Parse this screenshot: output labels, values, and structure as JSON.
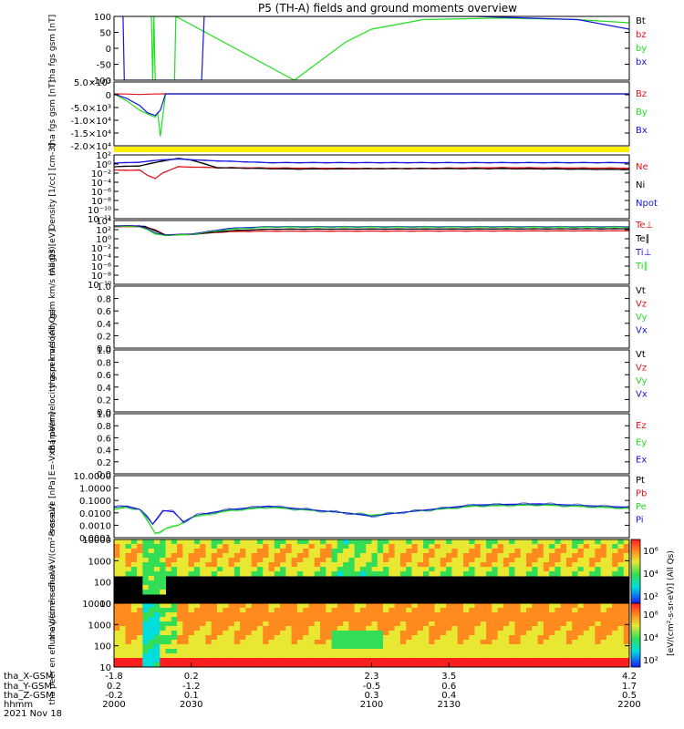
{
  "title": "P5 (TH-A) fields and ground moments overview",
  "colors": {
    "black": "#000000",
    "red": "#e0141e",
    "green": "#22dd22",
    "blue": "#1515e0",
    "yellow": "#ffee00",
    "axis": "#000000"
  },
  "chart_data": [
    {
      "type": "line",
      "panel": "fgs-gsm",
      "ylabel": "tha fgs gsm [nT]",
      "yticks": [
        "100",
        "50",
        "0",
        "-50",
        "-100"
      ],
      "ylim": [
        -100,
        100
      ],
      "series": [
        {
          "name": "Bt",
          "color": "#000000",
          "x": [],
          "y": []
        },
        {
          "name": "bz",
          "color": "#e0141e",
          "x": [],
          "y": []
        },
        {
          "name": "by",
          "color": "#22dd22",
          "x": [
            2000,
            2014,
            2014.5,
            2015,
            2015.5,
            2016,
            2016.5,
            2023.5,
            2024,
            2070,
            2080,
            2090,
            2100,
            2120,
            2150,
            2180,
            2200
          ],
          "y": [
            null,
            null,
            100,
            -100,
            100,
            -100,
            null,
            -100,
            100,
            -100,
            -40,
            20,
            60,
            90,
            95,
            90,
            80
          ]
        },
        {
          "name": "bx",
          "color": "#1515e0",
          "x": [
            2003.5,
            2004,
            2034,
            2035,
            2140,
            2180,
            2200
          ],
          "y": [
            100,
            -100,
            -100,
            100,
            100,
            90,
            60
          ]
        }
      ]
    },
    {
      "type": "line",
      "panel": "fgs-gsm-large",
      "ylabel": "tha fgs gsm [nT]",
      "yticks": [
        "5.0×10³",
        "0",
        "-5.0×10³",
        "-1.0×10⁴",
        "-1.5×10⁴",
        "-2.0×10⁴"
      ],
      "ylim": [
        -22000,
        5000
      ],
      "series": [
        {
          "name": "Bz",
          "color": "#e0141e",
          "x": [
            2000,
            2005,
            2010,
            2015,
            2020,
            2200
          ],
          "y": [
            0,
            -100,
            -300,
            -100,
            0,
            0
          ]
        },
        {
          "name": "By",
          "color": "#22dd22",
          "x": [
            2000,
            2005,
            2010,
            2015,
            2016,
            2017,
            2018,
            2020,
            2200
          ],
          "y": [
            0,
            -3000,
            -7000,
            -9500,
            -9800,
            -8000,
            -18000,
            0,
            0
          ]
        },
        {
          "name": "Bx",
          "color": "#1515e0",
          "x": [
            2000,
            2005,
            2010,
            2013,
            2016,
            2018,
            2020,
            2200
          ],
          "y": [
            0,
            -2000,
            -5000,
            -8000,
            -9200,
            -7000,
            0,
            0
          ]
        }
      ]
    },
    {
      "type": "line",
      "panel": "density",
      "ylabel": "Density [1/cc] [cm-3]",
      "yticks": [
        "10²",
        "10⁰",
        "10⁻²",
        "10⁻⁴",
        "10⁻⁶",
        "10⁻⁸",
        "10⁻¹⁰",
        "10⁻¹²"
      ],
      "yscale": "log",
      "ylim": [
        -12,
        2
      ],
      "series": [
        {
          "name": "Ne",
          "color": "#e0141e",
          "x": [
            2000,
            2005,
            2010,
            2013,
            2016,
            2019,
            2025,
            2040,
            2070,
            2110,
            2150,
            2200
          ],
          "y": [
            -1.3,
            -1.4,
            -1.3,
            -2.5,
            -3.2,
            -1.9,
            -0.6,
            -0.8,
            -0.9,
            -1.0,
            -0.8,
            -0.9
          ]
        },
        {
          "name": "Ni",
          "color": "#000000",
          "x": [
            2000,
            2010,
            2020,
            2025,
            2030,
            2040,
            2070,
            2110,
            2150,
            2200
          ],
          "y": [
            -0.6,
            -0.4,
            0.8,
            1.2,
            0.9,
            -0.8,
            -1.1,
            -1.0,
            -1.0,
            -1.2
          ]
        },
        {
          "name": "Npot",
          "color": "#1515e0",
          "x": [
            2000,
            2010,
            2018,
            2025,
            2035,
            2060,
            2200
          ],
          "y": [
            0.2,
            0.4,
            0.9,
            1.1,
            0.8,
            0.3,
            0.3
          ]
        }
      ]
    },
    {
      "type": "line",
      "panel": "temperature",
      "ylabel": "magt3 [eV]",
      "yticks": [
        "10⁴",
        "10²",
        "10⁰",
        "10⁻²",
        "10⁻⁴",
        "10⁻⁶",
        "10⁻⁸",
        "10⁻¹⁰"
      ],
      "yscale": "log",
      "ylim": [
        -11,
        4.5
      ],
      "series": [
        {
          "name": "Te⊥",
          "color": "#e0141e",
          "x": [
            2000,
            2012,
            2016,
            2020,
            2030,
            2045,
            2060,
            2200
          ],
          "y": [
            3.0,
            3.0,
            2.2,
            1.0,
            1.2,
            1.8,
            1.9,
            2.0
          ]
        },
        {
          "name": "Te∥",
          "color": "#000000",
          "x": [
            2000,
            2012,
            2016,
            2020,
            2030,
            2045,
            2060,
            2200
          ],
          "y": [
            3.2,
            3.1,
            2.0,
            1.0,
            1.1,
            2.0,
            2.4,
            2.5
          ]
        },
        {
          "name": "Ti⊥",
          "color": "#1515e0",
          "x": [
            2000,
            2010,
            2013,
            2016,
            2020,
            2030,
            2045,
            2060,
            2200
          ],
          "y": [
            3.2,
            3.2,
            2.5,
            1.4,
            1.0,
            1.2,
            2.6,
            3.0,
            3.0
          ]
        },
        {
          "name": "Ti∥",
          "color": "#22dd22",
          "x": [
            2000,
            2010,
            2013,
            2016,
            2020,
            2030,
            2045,
            2060,
            2200
          ],
          "y": [
            3.1,
            3.0,
            2.3,
            1.2,
            0.9,
            1.1,
            2.4,
            2.9,
            2.9
          ]
        }
      ]
    },
    {
      "type": "line",
      "panel": "peir-velocity",
      "ylabel": "tha peir velocity gsm km/s (All Qs)",
      "yticks": [
        "1.0",
        "0.8",
        "0.6",
        "0.4",
        "0.2",
        "0.0"
      ],
      "ylim": [
        0,
        1
      ],
      "series": [
        {
          "name": "Vt",
          "color": "#000000",
          "x": [],
          "y": []
        },
        {
          "name": "Vz",
          "color": "#e0141e",
          "x": [],
          "y": []
        },
        {
          "name": "Vy",
          "color": "#22dd22",
          "x": [],
          "y": []
        },
        {
          "name": "Vx",
          "color": "#1515e0",
          "x": [],
          "y": []
        }
      ]
    },
    {
      "type": "line",
      "panel": "peer-velocity",
      "ylabel": "tha peer velocity gsm km/s (All Qs)",
      "yticks": [
        "1.0",
        "0.8",
        "0.6",
        "0.4",
        "0.2",
        "0.0"
      ],
      "ylim": [
        0,
        1
      ],
      "series": [
        {
          "name": "Vt",
          "color": "#000000",
          "x": [],
          "y": []
        },
        {
          "name": "Vz",
          "color": "#e0141e",
          "x": [],
          "y": []
        },
        {
          "name": "Vy",
          "color": "#22dd22",
          "x": [],
          "y": []
        },
        {
          "name": "Vx",
          "color": "#1515e0",
          "x": [],
          "y": []
        }
      ]
    },
    {
      "type": "line",
      "panel": "efield",
      "ylabel": "E=-VxB [mV/m]",
      "yticks": [
        "1.0",
        "0.8",
        "0.6",
        "0.4",
        "0.2",
        "0.0"
      ],
      "ylim": [
        0,
        1
      ],
      "series": [
        {
          "name": "Ez",
          "color": "#e0141e",
          "x": [],
          "y": []
        },
        {
          "name": "Ey",
          "color": "#22dd22",
          "x": [],
          "y": []
        },
        {
          "name": "Ex",
          "color": "#1515e0",
          "x": [],
          "y": []
        }
      ]
    },
    {
      "type": "line",
      "panel": "pressure",
      "ylabel": "Pressure [nPa]",
      "yticks": [
        "10.0000",
        "1.0000",
        "0.1000",
        "0.0100",
        "0.0010",
        "0.0001"
      ],
      "yscale": "log",
      "ylim": [
        -4,
        1.5
      ],
      "series": [
        {
          "name": "Pt",
          "color": "#000000",
          "x": [],
          "y": []
        },
        {
          "name": "Pb",
          "color": "#e0141e",
          "x": [],
          "y": []
        },
        {
          "name": "Pe",
          "color": "#22dd22",
          "x": [
            2000,
            2005,
            2010,
            2013,
            2016,
            2018,
            2020,
            2025,
            2030,
            2045,
            2060,
            2090,
            2100,
            2110,
            2140,
            2165,
            2200
          ],
          "y": [
            -1.5,
            -1.3,
            -1.5,
            -2.5,
            -3.6,
            -3.5,
            -3.2,
            -2.9,
            -2.2,
            -1.6,
            -1.3,
            -1.8,
            -2.0,
            -1.8,
            -1.2,
            -1.1,
            -1.4
          ]
        },
        {
          "name": "Pi",
          "color": "#1515e0",
          "x": [
            2000,
            2005,
            2010,
            2013,
            2015,
            2019,
            2023,
            2027,
            2032,
            2045,
            2060,
            2090,
            2100,
            2110,
            2140,
            2165,
            2200
          ],
          "y": [
            -1.3,
            -1.2,
            -1.5,
            -2.2,
            -2.8,
            -1.6,
            -1.7,
            -2.6,
            -2.0,
            -1.5,
            -1.2,
            -1.8,
            -2.1,
            -1.8,
            -1.1,
            -1.0,
            -1.3
          ]
        }
      ]
    },
    {
      "type": "heatmap",
      "panel": "peir-en-eflux",
      "ylabel": "tha peir en eflux eV/(cm²-s-sr-eV)",
      "yticks": [
        "10000",
        "1000",
        "100",
        "10"
      ],
      "yscale": "log"
    },
    {
      "type": "heatmap",
      "panel": "peer-en-eflux",
      "ylabel": "tha peer en eflux eV/(cm²-s-sr-eV)",
      "yticks": [
        "10000",
        "1000",
        "100",
        "10"
      ],
      "yscale": "log"
    }
  ],
  "colorbar": {
    "label": "[eV/(cm²-s-sr-eV)] (All Qs)",
    "upper_ticks": [
      "10⁶",
      "10⁴",
      "10²"
    ],
    "lower_ticks": [
      "10⁶",
      "10⁴",
      "10²"
    ]
  },
  "xaxis": {
    "row_labels": [
      "tha_X-GSM",
      "tha_Y-GSM",
      "tha_Z-GSM",
      "hhmm",
      "2021 Nov 18"
    ],
    "tick_times": [
      2000,
      2030,
      2100,
      2130,
      2200
    ],
    "x_gsm": [
      "-1.8",
      "0.2",
      "2.3",
      "3.5",
      "4.2"
    ],
    "y_gsm": [
      "0.2",
      "-1.2",
      "-0.5",
      "0.6",
      "1.7"
    ],
    "z_gsm": [
      "-0.2",
      "0.1",
      "0.3",
      "0.4",
      "0.5"
    ],
    "hhmm": [
      "2000",
      "2030",
      "2100",
      "2130",
      "2200"
    ]
  }
}
